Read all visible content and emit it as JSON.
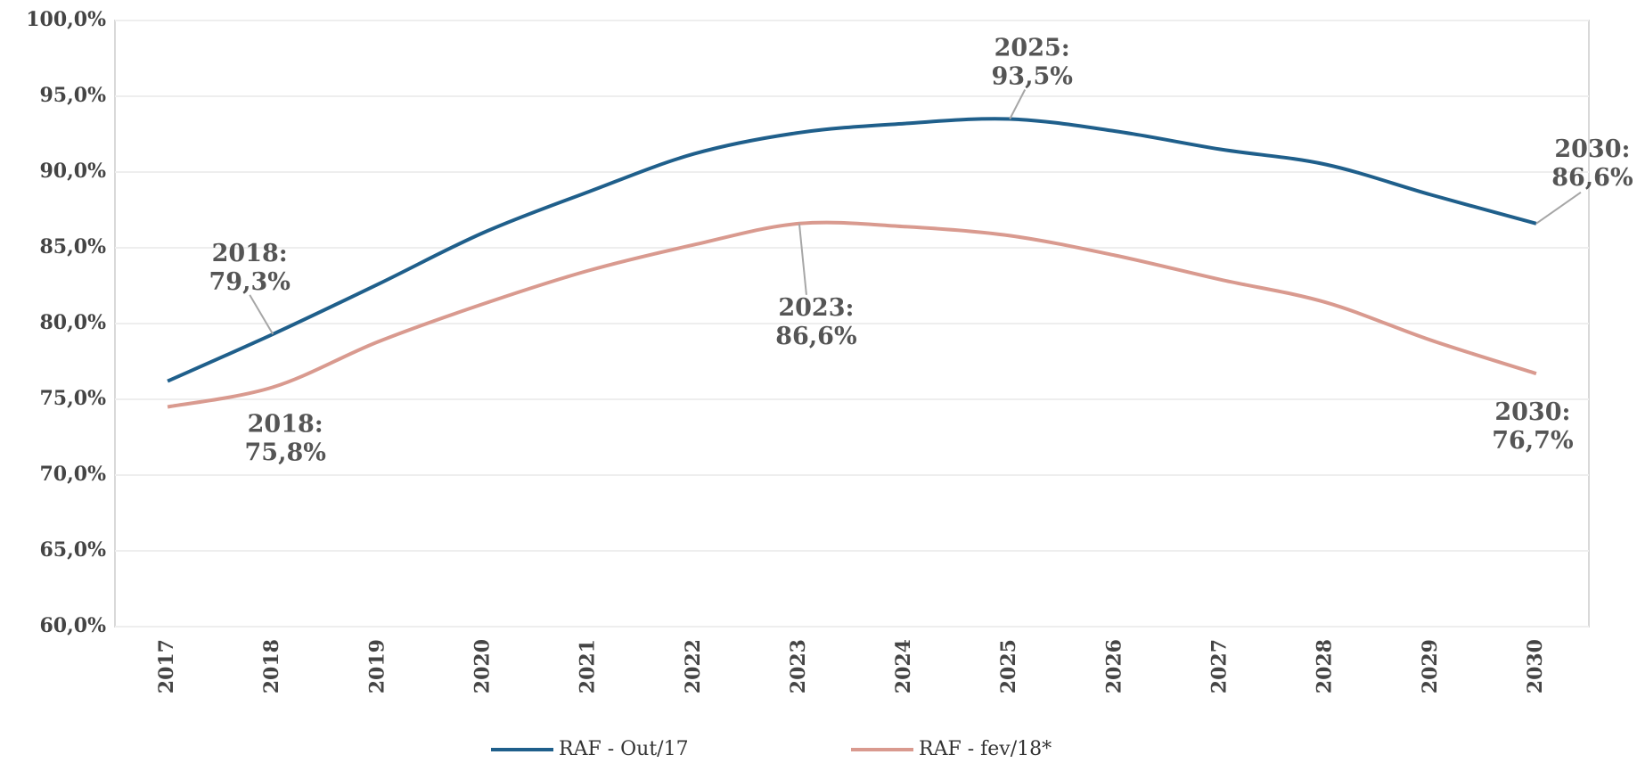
{
  "chart_data": {
    "type": "line",
    "categories": [
      "2017",
      "2018",
      "2019",
      "2020",
      "2021",
      "2022",
      "2023",
      "2024",
      "2025",
      "2026",
      "2027",
      "2028",
      "2029",
      "2030"
    ],
    "series": [
      {
        "name": "RAF - Out/17",
        "color": "#1f5f8b",
        "values": [
          76.2,
          79.3,
          82.6,
          86.0,
          88.7,
          91.2,
          92.6,
          93.2,
          93.5,
          92.7,
          91.5,
          90.5,
          88.5,
          86.6
        ],
        "value_labels": [
          null,
          [
            "2018:",
            "79,3%"
          ],
          null,
          null,
          null,
          null,
          null,
          null,
          [
            "2025:",
            "93,5%"
          ],
          null,
          null,
          null,
          null,
          [
            "2030:",
            "86,6%"
          ]
        ]
      },
      {
        "name": "RAF - fev/18*",
        "color": "#d99a8f",
        "values": [
          74.5,
          75.8,
          78.8,
          81.3,
          83.5,
          85.2,
          86.6,
          86.4,
          85.8,
          84.5,
          82.9,
          81.4,
          78.9,
          76.7
        ],
        "value_labels": [
          null,
          [
            "2018:",
            "75,8%"
          ],
          null,
          null,
          null,
          null,
          [
            "2023:",
            "86,6%"
          ],
          null,
          null,
          null,
          null,
          null,
          null,
          [
            "2030:",
            "76,7%"
          ]
        ]
      }
    ],
    "ylim": [
      60,
      100
    ],
    "yticks": [
      {
        "value": 60,
        "label": "60,0%"
      },
      {
        "value": 65,
        "label": "65,0%"
      },
      {
        "value": 70,
        "label": "70,0%"
      },
      {
        "value": 75,
        "label": "75,0%"
      },
      {
        "value": 80,
        "label": "80,0%"
      },
      {
        "value": 85,
        "label": "85,0%"
      },
      {
        "value": 90,
        "label": "90,0%"
      },
      {
        "value": 95,
        "label": "95,0%"
      },
      {
        "value": 100,
        "label": "100,0%"
      }
    ],
    "grid": true,
    "legend": "bottom"
  }
}
